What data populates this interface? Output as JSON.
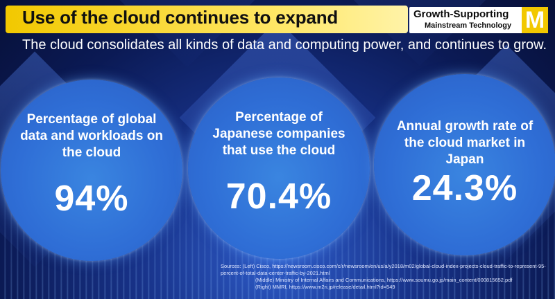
{
  "header": {
    "title": "Use of the cloud continues to expand",
    "tag_line1": "Growth-Supporting",
    "tag_line2": "Mainstream Technology",
    "tag_letter": "M"
  },
  "subtitle": "The cloud consolidates all kinds of data and computing power, and continues to grow.",
  "stats": [
    {
      "label": "Percentage of global data and workloads on the cloud",
      "value": "94%"
    },
    {
      "label": "Percentage of Japanese companies that use the cloud",
      "value": "70.4%"
    },
    {
      "label": "Annual growth rate of the cloud market in Japan",
      "value": "24.3%"
    }
  ],
  "sources": {
    "left": "Sources: (Left) Cisco, https://newsroom.cisco.com/c/r/newsroom/en/us/a/y2018/m02/global-cloud-index-projects-cloud-traffic-to-represent-95-percent-of-total-data-center-traffic-by-2021.html",
    "middle": "(Middle) Ministry of Internal Affairs and Communications, https://www.soumu.go.jp/main_content/000815652.pdf",
    "right": "(Right) MMRI, https://www.m2ri.jp/release/detail.html?id=549"
  },
  "colors": {
    "background": "#0b1850",
    "title_bar": "#f2c800",
    "circle": "#2f6ed6",
    "text": "#ffffff"
  }
}
